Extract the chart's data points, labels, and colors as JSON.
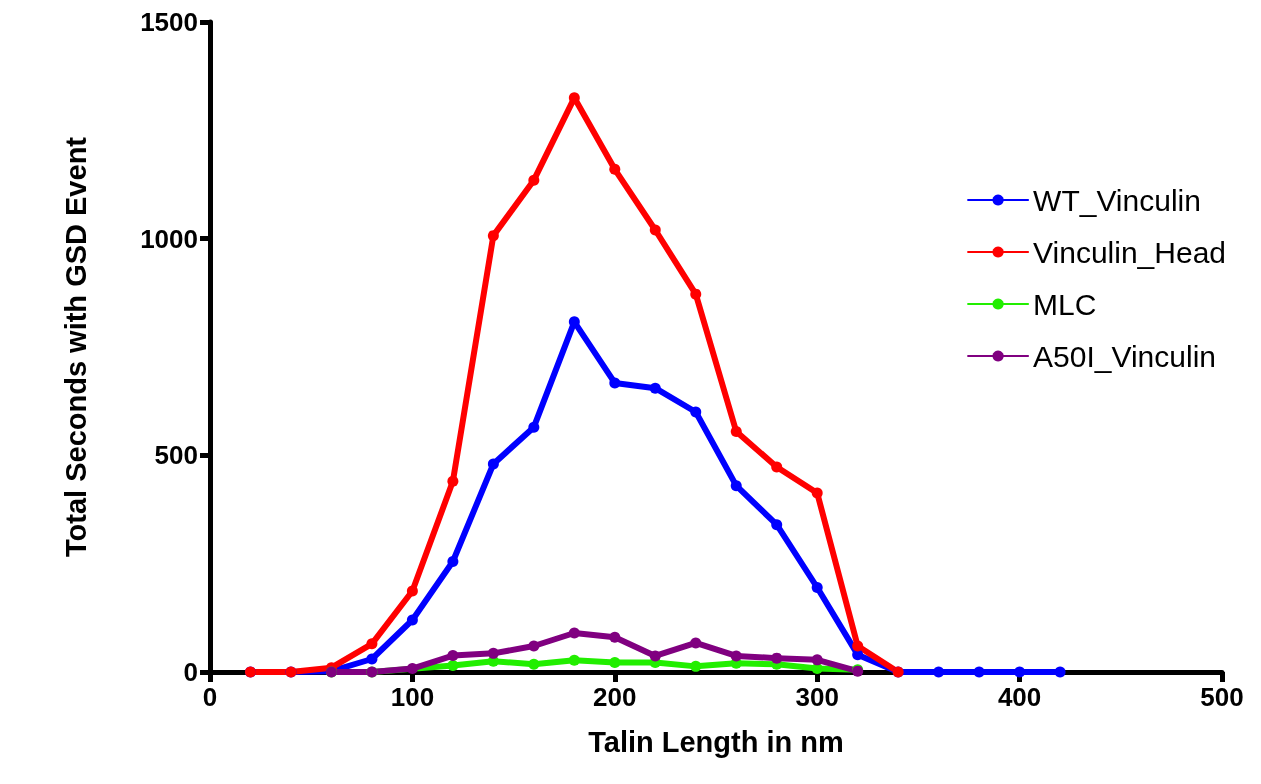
{
  "chart_data": {
    "type": "line",
    "xlabel": "Talin Length in nm",
    "ylabel": "Total Seconds with GSD Event",
    "xlim": [
      0,
      500
    ],
    "xticks": [
      0,
      100,
      200,
      300,
      400,
      500
    ],
    "ylim": [
      0,
      1500
    ],
    "yticks": [
      0,
      500,
      1000,
      1500
    ],
    "grid": false,
    "legend": "top right",
    "marker": "circle",
    "line_style": "solid",
    "series": [
      {
        "name": "WT_Vinculin",
        "color": "#0000ff",
        "x": [
          20,
          40,
          60,
          80,
          100,
          120,
          140,
          160,
          180,
          200,
          220,
          240,
          260,
          280,
          300,
          320,
          340,
          360,
          380,
          400,
          420
        ],
        "values": [
          0,
          0,
          2,
          30,
          120,
          255,
          480,
          565,
          808,
          667,
          655,
          600,
          430,
          340,
          195,
          40,
          0,
          0,
          0,
          0,
          0
        ]
      },
      {
        "name": "Vinculin_Head",
        "color": "#ff0000",
        "x": [
          20,
          40,
          60,
          80,
          100,
          120,
          140,
          160,
          180,
          200,
          220,
          240,
          260,
          280,
          300,
          320,
          340
        ],
        "values": [
          0,
          0,
          10,
          65,
          187,
          440,
          1007,
          1135,
          1325,
          1160,
          1020,
          872,
          555,
          473,
          413,
          60,
          0
        ]
      },
      {
        "name": "MLC",
        "color": "#22ee00",
        "x": [
          60,
          80,
          100,
          120,
          140,
          160,
          180,
          200,
          220,
          240,
          260,
          280,
          300,
          320
        ],
        "values": [
          0,
          0,
          null,
          15,
          25,
          18,
          27,
          22,
          22,
          13,
          20,
          18,
          8,
          5
        ]
      },
      {
        "name": "A50I_Vinculin",
        "color": "#800080",
        "x": [
          60,
          80,
          100,
          120,
          140,
          160,
          180,
          200,
          220,
          240,
          260,
          280,
          300,
          320
        ],
        "values": [
          0,
          0,
          8,
          38,
          43,
          60,
          90,
          80,
          37,
          67,
          37,
          32,
          28,
          2
        ]
      }
    ]
  }
}
